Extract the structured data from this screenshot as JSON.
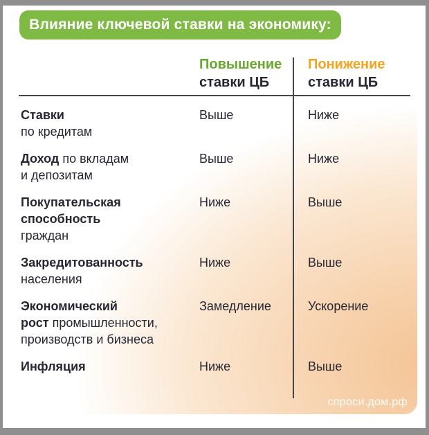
{
  "title_banner": "Влияние ключевой ставки на экономику:",
  "columns": {
    "raise": {
      "accent": "Повышение",
      "rest": "ставки ЦБ"
    },
    "lower": {
      "accent": "Понижение",
      "rest": "ставки ЦБ"
    }
  },
  "rows": [
    {
      "lines": [
        [
          {
            "t": "Ставки",
            "b": true
          }
        ],
        [
          {
            "t": "по кредитам",
            "b": false
          }
        ]
      ],
      "raise": "Выше",
      "lower": "Ниже"
    },
    {
      "lines": [
        [
          {
            "t": "Доход",
            "b": true
          },
          {
            "t": " по вкладам",
            "b": false
          }
        ],
        [
          {
            "t": "и депозитам",
            "b": false
          }
        ]
      ],
      "raise": "Выше",
      "lower": "Ниже"
    },
    {
      "lines": [
        [
          {
            "t": "Покупательская",
            "b": true
          }
        ],
        [
          {
            "t": "способность",
            "b": true
          }
        ],
        [
          {
            "t": "граждан",
            "b": false
          }
        ]
      ],
      "raise": "Ниже",
      "lower": "Выше"
    },
    {
      "lines": [
        [
          {
            "t": "Закредитованность",
            "b": true
          }
        ],
        [
          {
            "t": "населения",
            "b": false
          }
        ]
      ],
      "raise": "Ниже",
      "lower": "Выше"
    },
    {
      "lines": [
        [
          {
            "t": "Экономический",
            "b": true
          }
        ],
        [
          {
            "t": "рост",
            "b": true
          },
          {
            "t": " промышленности,",
            "b": false
          }
        ],
        [
          {
            "t": "производств и бизнеса",
            "b": false
          }
        ]
      ],
      "raise": "Замедление",
      "lower": "Ускорение"
    },
    {
      "lines": [
        [
          {
            "t": "Инфляция",
            "b": true
          }
        ]
      ],
      "raise": "Ниже",
      "lower": "Выше"
    }
  ],
  "watermark": "спроси.дом.рф",
  "colors": {
    "banner_green": "#7eba44",
    "accent_green": "#68a82c",
    "accent_orange": "#f5a41f",
    "text_dark": "#272633",
    "divider": "#45454f",
    "peach_strong": "#f4c394",
    "frame_gray": "#8f8f8f"
  },
  "chart_data": {
    "type": "table",
    "title": "Влияние ключевой ставки на экономику:",
    "columns": [
      "",
      "Повышение ставки ЦБ",
      "Понижение ставки ЦБ"
    ],
    "rows": [
      [
        "Ставки по кредитам",
        "Выше",
        "Ниже"
      ],
      [
        "Доход по вкладам и депозитам",
        "Выше",
        "Ниже"
      ],
      [
        "Покупательская способность граждан",
        "Ниже",
        "Выше"
      ],
      [
        "Закредитованность населения",
        "Ниже",
        "Выше"
      ],
      [
        "Экономический рост промышленности, производств и бизнеса",
        "Замедление",
        "Ускорение"
      ],
      [
        "Инфляция",
        "Ниже",
        "Выше"
      ]
    ],
    "legend_position": "none",
    "notes": "comparison table on white-to-peach gradient card; raise column accent green, lower column accent orange"
  }
}
